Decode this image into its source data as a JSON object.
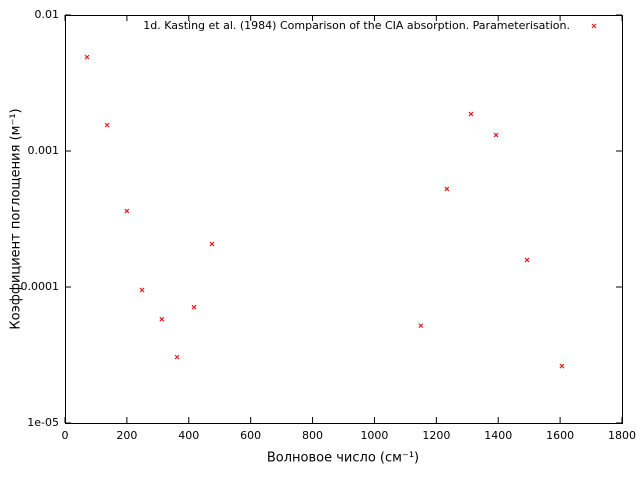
{
  "chart_data": {
    "type": "scatter",
    "xlabel": "Волновое число (см⁻¹)",
    "ylabel": "Коэффициент поглощения (м⁻¹)",
    "series": [
      {
        "name": "1d. Kasting et al. (1984) Comparison of the CIA absorption. Parameterisation.",
        "color": "#e41a1c",
        "x": [
          71,
          136,
          200,
          249,
          313,
          362,
          417,
          475,
          1150,
          1234,
          1312,
          1393,
          1493,
          1606
        ],
        "values": [
          0.0049,
          0.00155,
          0.000362,
          9.5e-05,
          5.8e-05,
          3.05e-05,
          7.1e-05,
          0.000207,
          5.2e-05,
          0.000526,
          0.00187,
          0.00131,
          0.000158,
          2.62e-05
        ]
      }
    ],
    "xlim": [
      0,
      1800
    ],
    "xticks": [
      0,
      200,
      400,
      600,
      800,
      1000,
      1200,
      1400,
      1600,
      1800
    ],
    "ylim": [
      1e-05,
      0.01
    ],
    "ylog": true,
    "yticks": [
      0.01,
      0.001,
      0.0001,
      {
        "value": 1e-05,
        "label": "1e-05"
      }
    ],
    "legend": "top-right"
  }
}
